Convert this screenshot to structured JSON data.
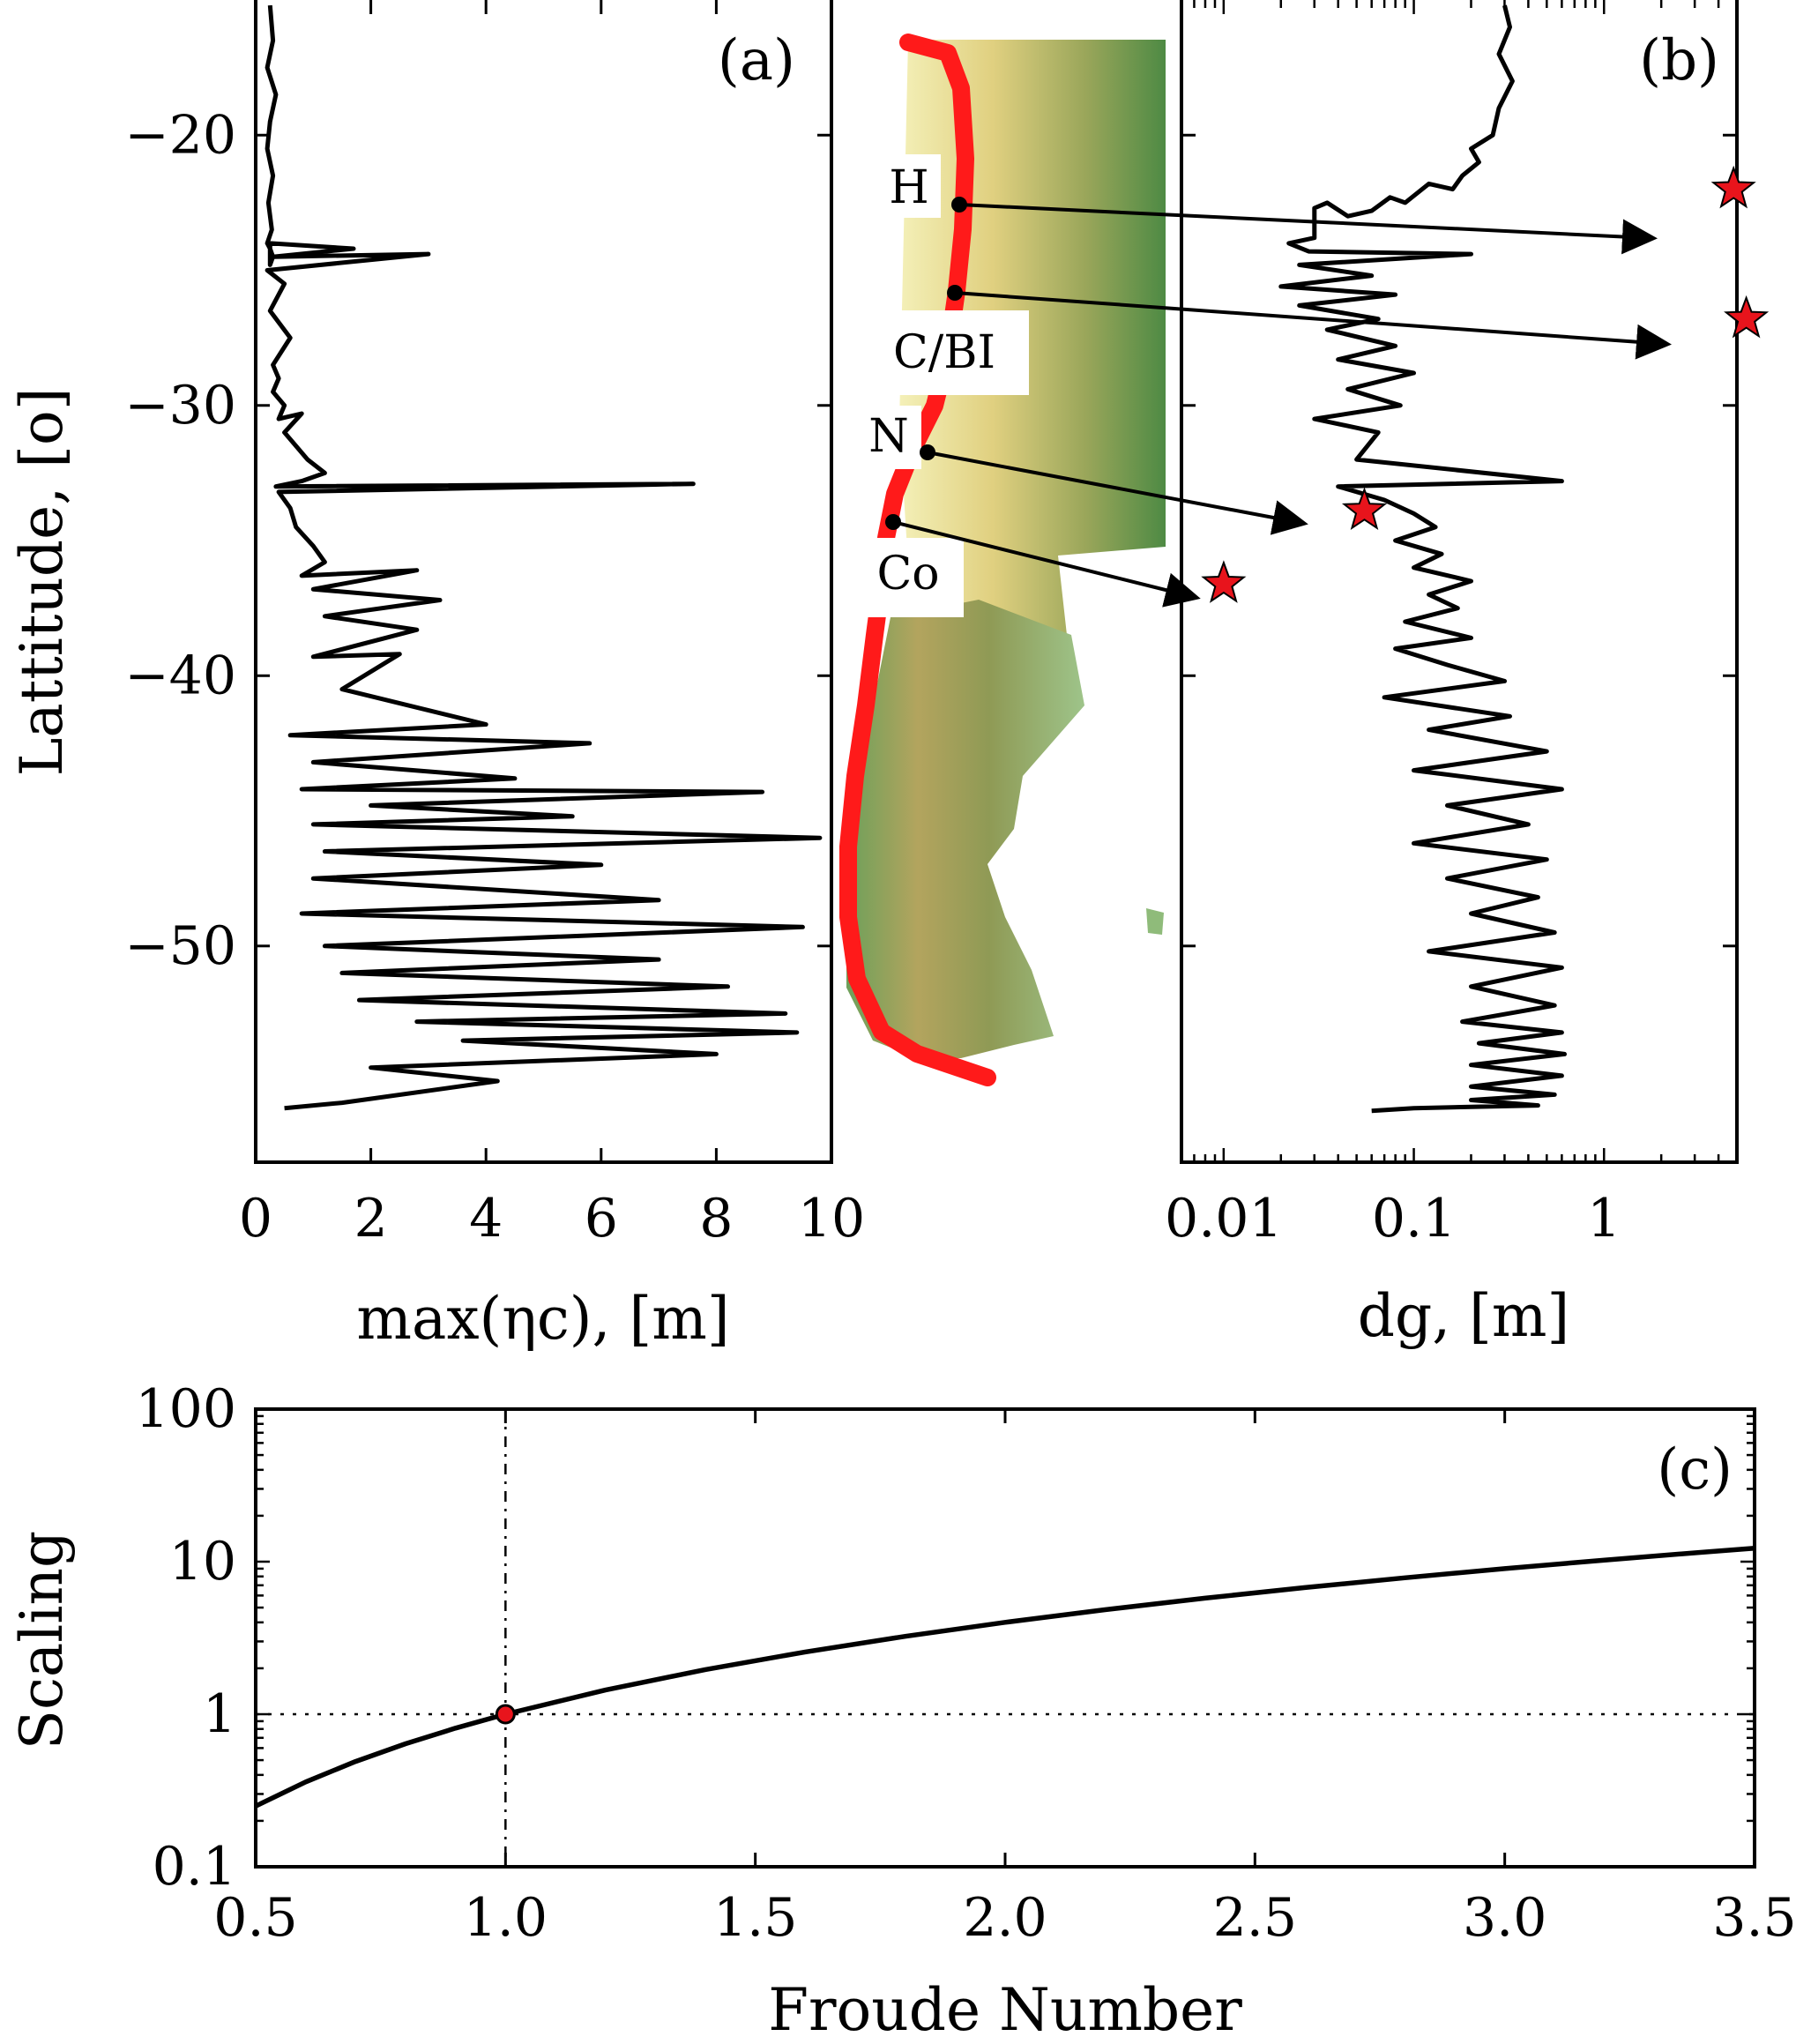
{
  "chart_data": [
    {
      "id": "a",
      "type": "line",
      "panel_label": "(a)",
      "ylabel": "Lattitude, [o]",
      "xlabel": "max(ηc), [m]",
      "xlim": [
        0,
        10
      ],
      "ylim": [
        -58,
        -15
      ],
      "xticks": [
        0,
        2,
        4,
        6,
        8,
        10
      ],
      "xtick_labels": [
        "0",
        "2",
        "4",
        "6",
        "8",
        "10"
      ],
      "yticks": [
        -20,
        -30,
        -40,
        -50
      ],
      "ytick_labels": [
        "−20",
        "−30",
        "−40",
        "−50"
      ],
      "series": [
        {
          "x": [
            0.25,
            0.3,
            0.2,
            0.35,
            0.25,
            0.2,
            0.3,
            0.22,
            0.28,
            0.2,
            0.25,
            0.3,
            0.25,
            0.25,
            1.7,
            0.3,
            3.0,
            0.2,
            0.5,
            0.25,
            0.6,
            0.3,
            0.4,
            0.3,
            0.5,
            0.4,
            0.8,
            0.5,
            0.9,
            1.2,
            0.8,
            0.35,
            7.6,
            0.4,
            0.6,
            0.7,
            1.0,
            1.2,
            0.8,
            2.8,
            1.0,
            3.2,
            1.2,
            2.8,
            1.0,
            2.5,
            1.5,
            4.0,
            0.6,
            5.8,
            1.0,
            4.5,
            0.8,
            8.8,
            2.0,
            5.5,
            1.0,
            9.8,
            1.2,
            6.0,
            1.0,
            7.0,
            0.8,
            9.5,
            1.2,
            7.0,
            1.5,
            8.2,
            1.8,
            9.2,
            2.8,
            9.4,
            3.6,
            8.0,
            2.0,
            4.2,
            1.5,
            0.5
          ],
          "y": [
            -15.2,
            -16.5,
            -17.5,
            -18.5,
            -19.5,
            -20.5,
            -21.5,
            -22.5,
            -23.5,
            -24.0,
            -24.2,
            -24.5,
            -24.8,
            -24.0,
            -24.2,
            -24.5,
            -24.4,
            -25.0,
            -25.5,
            -26.5,
            -27.5,
            -28.5,
            -29.0,
            -29.5,
            -30.0,
            -30.5,
            -30.3,
            -31.0,
            -32.0,
            -32.5,
            -32.8,
            -33.0,
            -32.9,
            -33.2,
            -33.8,
            -34.5,
            -35.2,
            -35.8,
            -36.3,
            -36.1,
            -36.8,
            -37.2,
            -37.8,
            -38.3,
            -39.3,
            -39.2,
            -40.5,
            -41.8,
            -42.2,
            -42.5,
            -43.2,
            -43.8,
            -44.2,
            -44.3,
            -44.8,
            -45.2,
            -45.5,
            -46.0,
            -46.5,
            -47.0,
            -47.5,
            -48.3,
            -48.8,
            -49.3,
            -50.0,
            -50.5,
            -51.0,
            -51.5,
            -52.0,
            -52.5,
            -52.8,
            -53.2,
            -53.5,
            -54.0,
            -54.5,
            -55.0,
            -55.8,
            -56.0
          ]
        }
      ]
    },
    {
      "id": "b",
      "type": "line",
      "panel_label": "(b)",
      "xlabel": "dg, [m]",
      "xscale": "log",
      "xlim": [
        0.006,
        5.0
      ],
      "ylim": [
        -58,
        -15
      ],
      "xticks": [
        0.01,
        0.1,
        1
      ],
      "xtick_labels": [
        "0.01",
        "0.1",
        "1"
      ],
      "series": [
        {
          "x": [
            0.3,
            0.32,
            0.28,
            0.33,
            0.28,
            0.26,
            0.2,
            0.22,
            0.18,
            0.16,
            0.12,
            0.09,
            0.075,
            0.06,
            0.045,
            0.035,
            0.03,
            0.03,
            0.022,
            0.028,
            0.2,
            0.025,
            0.06,
            0.02,
            0.08,
            0.025,
            0.065,
            0.035,
            0.08,
            0.04,
            0.1,
            0.045,
            0.085,
            0.03,
            0.065,
            0.05,
            0.6,
            0.04,
            0.07,
            0.1,
            0.13,
            0.08,
            0.14,
            0.1,
            0.2,
            0.12,
            0.17,
            0.09,
            0.2,
            0.08,
            0.15,
            0.3,
            0.07,
            0.32,
            0.12,
            0.5,
            0.1,
            0.6,
            0.15,
            0.4,
            0.1,
            0.5,
            0.15,
            0.45,
            0.2,
            0.55,
            0.12,
            0.6,
            0.2,
            0.55,
            0.18,
            0.6,
            0.22,
            0.62,
            0.2,
            0.6,
            0.2,
            0.55,
            0.2,
            0.45,
            0.1,
            0.06
          ],
          "y": [
            -15.2,
            -16.0,
            -17.0,
            -18.0,
            -19.0,
            -20.0,
            -20.5,
            -21.0,
            -21.5,
            -22.0,
            -21.8,
            -22.5,
            -22.3,
            -22.8,
            -23.0,
            -22.5,
            -22.7,
            -23.8,
            -24.0,
            -24.3,
            -24.4,
            -24.8,
            -25.2,
            -25.6,
            -25.9,
            -26.3,
            -26.8,
            -27.2,
            -27.8,
            -28.3,
            -28.8,
            -29.4,
            -30.0,
            -30.5,
            -31.0,
            -32.0,
            -32.8,
            -33.0,
            -33.5,
            -34.0,
            -34.5,
            -35.0,
            -35.5,
            -36.0,
            -36.5,
            -37.0,
            -37.5,
            -38.0,
            -38.6,
            -39.0,
            -39.6,
            -40.2,
            -40.8,
            -41.5,
            -42.0,
            -42.8,
            -43.5,
            -44.2,
            -44.8,
            -45.5,
            -46.2,
            -46.8,
            -47.5,
            -48.2,
            -48.8,
            -49.5,
            -50.2,
            -50.8,
            -51.5,
            -52.2,
            -52.8,
            -53.2,
            -53.6,
            -54.0,
            -54.4,
            -54.8,
            -55.2,
            -55.5,
            -55.7,
            -55.9,
            -56.0,
            -56.1
          ]
        }
      ],
      "stars": [
        {
          "x": 4.8,
          "y": -22.0
        },
        {
          "x": 5.6,
          "y": -26.8
        },
        {
          "x": 0.055,
          "y": -33.9
        },
        {
          "x": 0.01,
          "y": -36.6
        }
      ]
    },
    {
      "id": "c",
      "type": "line",
      "panel_label": "(c)",
      "xlabel": "Froude Number",
      "ylabel": "Scaling",
      "xlim": [
        0.5,
        3.5
      ],
      "ylim": [
        0.1,
        100
      ],
      "yscale": "log",
      "xticks": [
        0.5,
        1.0,
        1.5,
        2.0,
        2.5,
        3.0,
        3.5
      ],
      "xtick_labels": [
        "0.5",
        "1.0",
        "1.5",
        "2.0",
        "2.5",
        "3.0",
        "3.5"
      ],
      "yticks": [
        0.1,
        1,
        10,
        100
      ],
      "ytick_labels": [
        "0.1",
        "1",
        "10",
        "100"
      ],
      "reference_lines": {
        "x": 1.0,
        "y": 1
      },
      "marker_point": {
        "x": 1.0,
        "y": 1
      },
      "series": [
        {
          "x": [
            0.5,
            0.6,
            0.7,
            0.8,
            0.9,
            1.0,
            1.2,
            1.4,
            1.6,
            1.8,
            2.0,
            2.2,
            2.4,
            2.6,
            2.8,
            3.0,
            3.2,
            3.4,
            3.5
          ],
          "y": [
            0.25,
            0.36,
            0.49,
            0.64,
            0.81,
            1.0,
            1.44,
            1.96,
            2.56,
            3.24,
            4.0,
            4.84,
            5.76,
            6.76,
            7.84,
            9.0,
            10.24,
            11.56,
            12.25
          ]
        }
      ]
    }
  ],
  "map": {
    "sites": [
      {
        "label": "H"
      },
      {
        "label": "C/BI"
      },
      {
        "label": "N"
      },
      {
        "label": "Co"
      }
    ]
  }
}
